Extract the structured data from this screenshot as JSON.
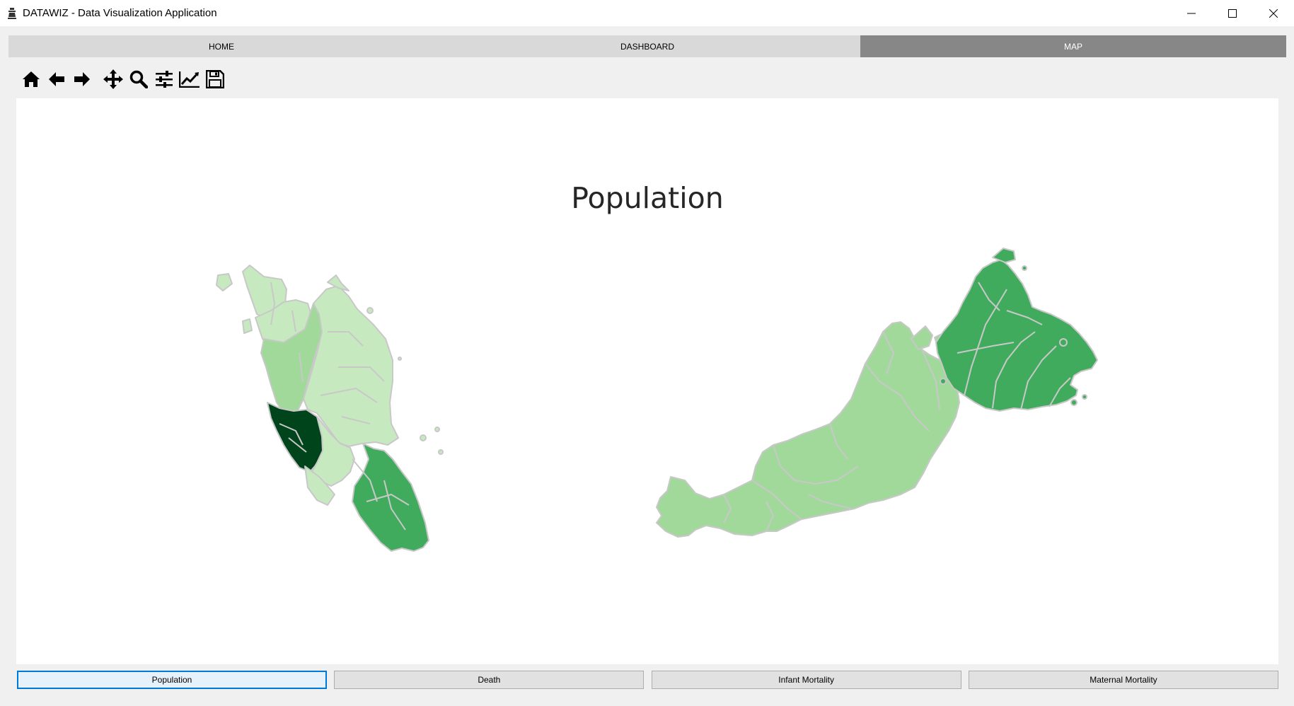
{
  "window": {
    "title": "DATAWIZ - Data Visualization Application",
    "icon": "app-icon",
    "controls": [
      "minimize-icon",
      "maximize-icon",
      "close-icon"
    ]
  },
  "tabs": [
    {
      "label": "HOME",
      "active": false
    },
    {
      "label": "DASHBOARD",
      "active": false
    },
    {
      "label": "MAP",
      "active": true
    }
  ],
  "toolbar": {
    "tools": [
      "home-icon",
      "back-icon",
      "forward-icon",
      "pan-icon",
      "zoom-icon",
      "configure-subplots-icon",
      "edit-axis-icon",
      "save-icon"
    ]
  },
  "plot": {
    "title": "Population",
    "colors": {
      "lightest": "#c7e9c0",
      "light": "#a1d99b",
      "medium": "#74c476",
      "mid_dark": "#41ab5d",
      "darkest": "#00441b",
      "border": "#c8c8c8"
    }
  },
  "buttons": [
    {
      "label": "Population",
      "focused": true
    },
    {
      "label": "Death",
      "focused": false
    },
    {
      "label": "Infant Mortality",
      "focused": false
    },
    {
      "label": "Maternal Mortality",
      "focused": false
    }
  ]
}
